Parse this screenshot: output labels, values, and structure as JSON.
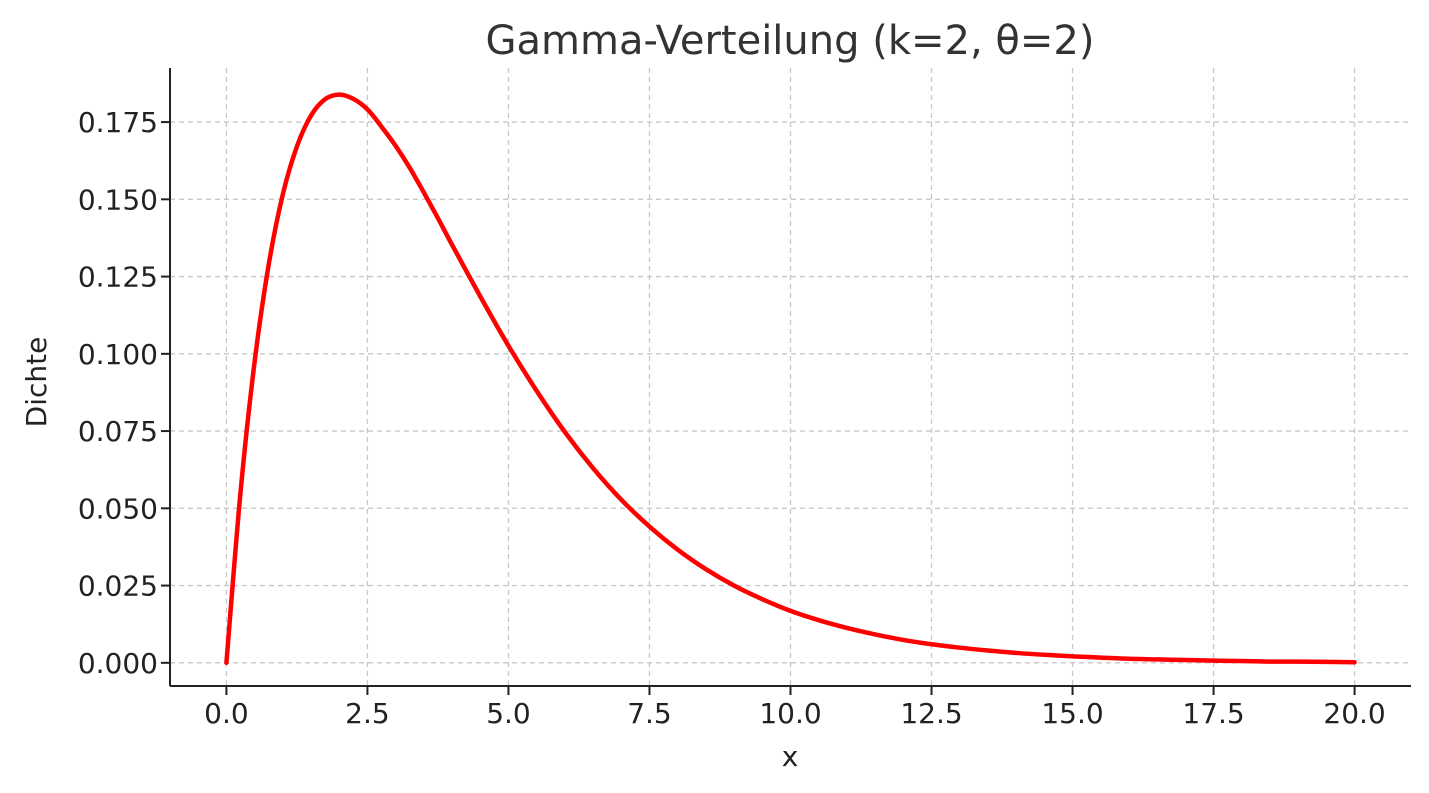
{
  "chart_data": {
    "type": "line",
    "title": "Gamma-Verteilung (k=2, θ=2)",
    "xlabel": "x",
    "ylabel": "Dichte",
    "xlim": [
      -1.0,
      21.0
    ],
    "ylim": [
      -0.0075,
      0.1925
    ],
    "xticks": [
      0.0,
      2.5,
      5.0,
      7.5,
      10.0,
      12.5,
      15.0,
      17.5,
      20.0
    ],
    "xtick_labels": [
      "0.0",
      "2.5",
      "5.0",
      "7.5",
      "10.0",
      "12.5",
      "15.0",
      "17.5",
      "20.0"
    ],
    "yticks": [
      0.0,
      0.025,
      0.05,
      0.075,
      0.1,
      0.125,
      0.15,
      0.175
    ],
    "ytick_labels": [
      "0.000",
      "0.025",
      "0.050",
      "0.075",
      "0.100",
      "0.125",
      "0.150",
      "0.175"
    ],
    "grid": true,
    "series": [
      {
        "color": "#ff0000",
        "x": [
          0,
          0.25,
          0.5,
          0.75,
          1,
          1.25,
          1.5,
          1.75,
          2,
          2.25,
          2.5,
          2.75,
          3,
          3.25,
          3.5,
          3.75,
          4,
          4.5,
          5,
          5.5,
          6,
          6.5,
          7,
          7.5,
          8,
          8.5,
          9,
          9.5,
          10,
          10.5,
          11,
          11.5,
          12,
          12.5,
          13,
          13.5,
          14,
          14.5,
          15,
          15.5,
          16,
          16.5,
          17,
          17.5,
          18,
          18.5,
          19,
          19.5,
          20
        ],
        "y": [
          0.0,
          0.0552,
          0.0974,
          0.1289,
          0.1516,
          0.1671,
          0.1771,
          0.1824,
          0.1839,
          0.1825,
          0.1791,
          0.1735,
          0.1673,
          0.1602,
          0.1522,
          0.1439,
          0.1353,
          0.1186,
          0.1026,
          0.088,
          0.0747,
          0.063,
          0.0528,
          0.0441,
          0.0366,
          0.0303,
          0.025,
          0.0206,
          0.0168,
          0.0138,
          0.0113,
          0.0092,
          0.0074,
          0.006,
          0.0049,
          0.004,
          0.0032,
          0.0026,
          0.0021,
          0.0017,
          0.0013,
          0.0011,
          0.0009,
          0.0007,
          0.0006,
          0.0004,
          0.0004,
          0.0003,
          0.0002
        ]
      }
    ]
  }
}
